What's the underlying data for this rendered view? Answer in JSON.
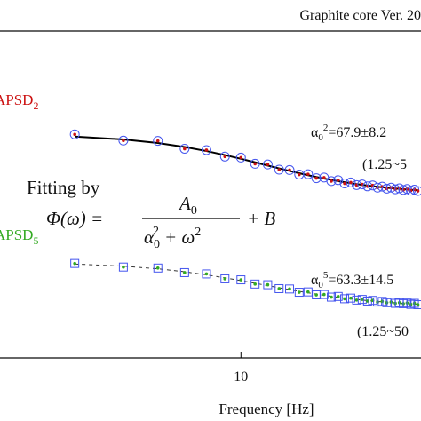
{
  "chart_data": {
    "type": "scatter",
    "title": "Graphite core Ver. 20",
    "x_label": "Frequency [Hz]",
    "log_x": true,
    "xlim": [
      1.34,
      44.9
    ],
    "xticks": [
      10
    ],
    "ylim": [
      0,
      100
    ],
    "x": [
      2.5,
      3.75,
      5,
      6.25,
      7.5,
      8.75,
      10,
      11.25,
      12.5,
      13.75,
      15,
      16.25,
      17.5,
      18.75,
      20,
      21.25,
      22.5,
      23.75,
      25,
      26.25,
      27.5,
      28.75,
      30,
      31.25,
      32.5,
      33.75,
      35,
      36.25,
      37.5,
      38.75,
      40,
      41.25,
      42.5,
      43.75
    ],
    "series": [
      {
        "name": "APSD",
        "name_sub": "2",
        "color": "#cc1111",
        "marker_color": "#4455ee",
        "marker": "circle",
        "values": [
          68.4,
          66.5,
          66.4,
          64.0,
          63.6,
          61.6,
          61.3,
          59.4,
          59.2,
          57.6,
          57.5,
          56.1,
          56.2,
          55.0,
          55.2,
          54.1,
          54.4,
          53.4,
          53.7,
          52.9,
          53.1,
          52.5,
          52.8,
          52.1,
          52.4,
          51.8,
          52.1,
          51.6,
          51.9,
          51.4,
          51.7,
          51.2,
          51.5,
          51.1
        ],
        "fit": [
          67.73,
          66.85,
          65.76,
          64.55,
          63.3,
          62.08,
          60.92,
          59.85,
          58.87,
          58.0,
          57.22,
          56.53,
          55.92,
          55.38,
          54.9,
          54.47,
          54.1,
          53.76,
          53.46,
          53.2,
          52.96,
          52.74,
          52.55,
          52.38,
          52.22,
          52.08,
          51.95,
          51.83,
          51.72,
          51.62,
          51.53,
          51.44,
          51.37,
          51.29
        ],
        "fit_color": "#000000",
        "fit_dashed": false
      },
      {
        "name": "APSD",
        "name_sub": "5",
        "color": "#33aa22",
        "marker_color": "#4455ee",
        "marker": "square",
        "values": [
          28.9,
          27.8,
          27.5,
          26.1,
          25.7,
          24.2,
          23.9,
          22.6,
          22.4,
          21.2,
          21.1,
          20.1,
          20.2,
          19.3,
          19.4,
          18.6,
          18.8,
          18.1,
          18.3,
          17.7,
          17.9,
          17.4,
          17.6,
          17.1,
          17.3,
          16.9,
          17.1,
          16.7,
          16.9,
          16.6,
          16.8,
          16.4,
          16.7,
          16.3
        ],
        "fit": [
          28.73,
          28.07,
          27.26,
          26.36,
          25.43,
          24.51,
          23.65,
          22.85,
          22.12,
          21.47,
          20.89,
          20.38,
          19.92,
          19.52,
          19.16,
          18.84,
          18.56,
          18.31,
          18.09,
          17.89,
          17.71,
          17.55,
          17.4,
          17.27,
          17.15,
          17.05,
          16.95,
          16.86,
          16.78,
          16.7,
          16.63,
          16.57,
          16.51,
          16.45
        ],
        "fit_color": "#333333",
        "fit_dashed": true
      }
    ],
    "annotations": [
      {
        "symbol": "α",
        "sub": "0",
        "sup": "2",
        "text": "=67.9±8.2",
        "range": "(1.25~5"
      },
      {
        "symbol": "α",
        "sub": "0",
        "sup": "5",
        "text": "=63.3±14.5",
        "range": "(1.25~50"
      }
    ],
    "formula": {
      "caption": "Fitting by",
      "lhs": "Φ(ω) =",
      "num": "A",
      "num_sub": "0",
      "den_a": "α",
      "den_a_sub": "0",
      "den_a_sup": "2",
      "den_plus": "+ ω",
      "den_w_sup": "2",
      "tail": "+ B"
    }
  }
}
